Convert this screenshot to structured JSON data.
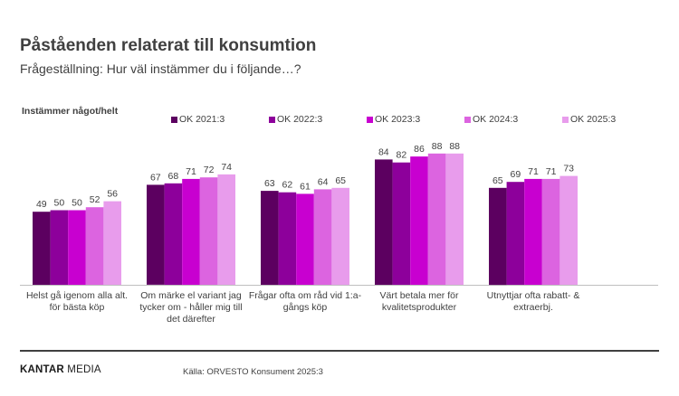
{
  "header": {
    "title": "Påståenden relaterat till konsumtion",
    "subtitle": "Frågeställning: Hur väl instämmer du i följande…?"
  },
  "footer": {
    "brand_bold": "KANTAR",
    "brand_light": " MEDIA",
    "source": "Källa: ORVESTO Konsument 2025:3"
  },
  "chart_data": {
    "type": "bar",
    "title": "Påståenden relaterat till konsumtion",
    "ylabel": "Instämmer något/helt",
    "xlabel": "",
    "ylim": [
      0,
      100
    ],
    "grid": false,
    "legend_position": "top",
    "categories": [
      "Helst gå igenom alla alt. för bästa köp",
      "Om märke el variant jag tycker om - håller mig till det därefter",
      "Frågar ofta om råd vid 1:a-gångs köp",
      "Värt betala mer för kvalitetsprodukter",
      "Utnyttjar ofta rabatt- & extraerbj."
    ],
    "series": [
      {
        "name": "OK 2021:3",
        "color": "#5c0060",
        "values": [
          49,
          67,
          63,
          84,
          65
        ]
      },
      {
        "name": "OK 2022:3",
        "color": "#8d009b",
        "values": [
          50,
          68,
          62,
          82,
          69
        ]
      },
      {
        "name": "OK 2023:3",
        "color": "#c800d0",
        "values": [
          50,
          71,
          61,
          86,
          71
        ]
      },
      {
        "name": "OK 2024:3",
        "color": "#dc64e0",
        "values": [
          52,
          72,
          64,
          88,
          71
        ]
      },
      {
        "name": "OK 2025:3",
        "color": "#e89cec",
        "values": [
          56,
          74,
          65,
          88,
          73
        ]
      }
    ]
  }
}
